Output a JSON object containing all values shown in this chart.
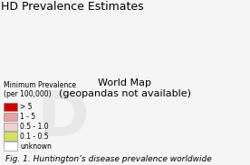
{
  "title": "HD Prevalence Estimates",
  "caption": "Fig. 1. Huntington’s disease prevalence worldwide",
  "legend_title": "Minimum Prevalence\n(per 100,000)",
  "legend_entries": [
    {
      "> 5": "#cc0000"
    },
    {
      "1 - 5": "#e8a0a0"
    },
    {
      "0.5 - 1.0": "#f0d0d0"
    },
    {
      "0.1 - 0.5": "#d4e060"
    },
    {
      "unknown": "#ffffff"
    }
  ],
  "legend_colors": [
    "#cc0000",
    "#e8a0a0",
    "#f0d0d0",
    "#d4e060",
    "#ffffff"
  ],
  "legend_labels": [
    "> 5",
    "1 - 5",
    "0.5 - 1.0",
    "0.1 - 0.5",
    "unknown"
  ],
  "bg_color": "#f5f5f5",
  "map_bg": "#d0e8f0",
  "title_fontsize": 9,
  "caption_fontsize": 6.5,
  "legend_fontsize": 5.5,
  "watermark_text": "D",
  "watermark_color": "#dddddd"
}
